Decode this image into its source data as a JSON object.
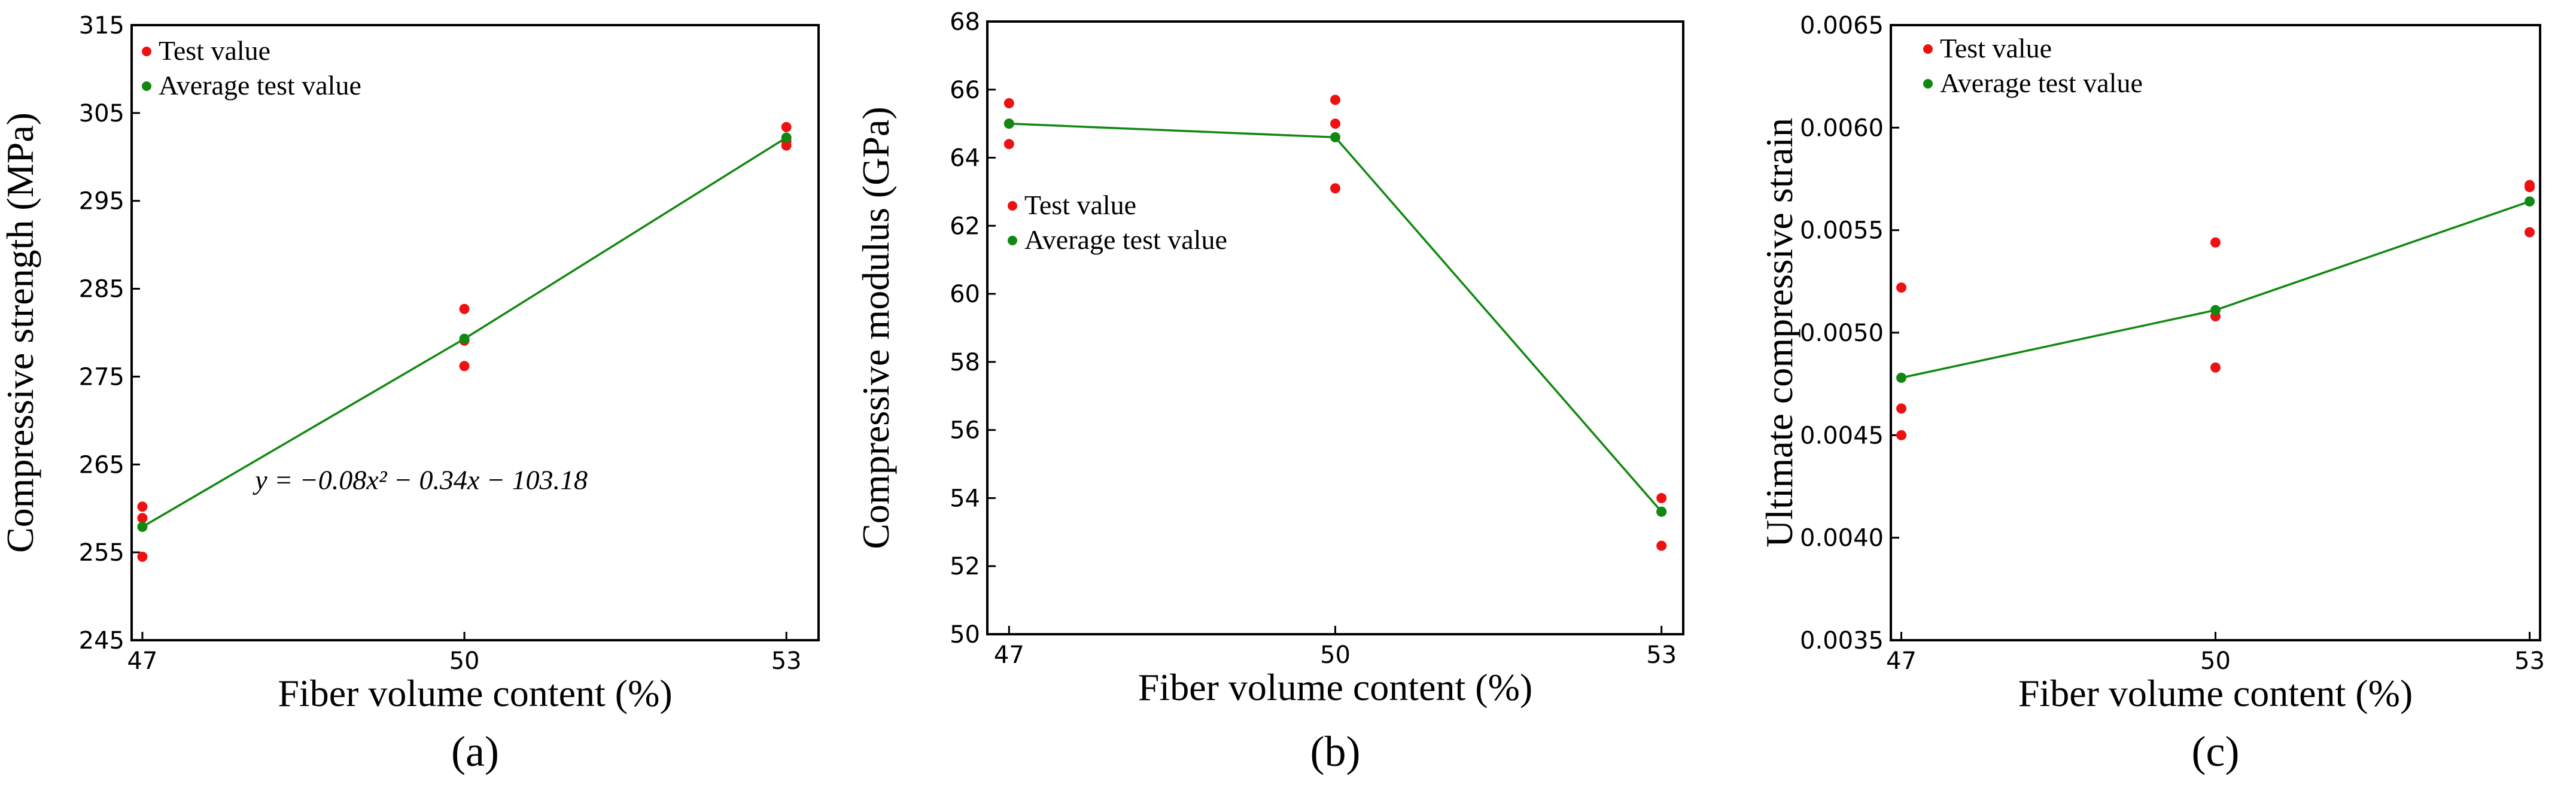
{
  "colors": {
    "test": "#ee1111",
    "average": "#118811",
    "frame": "#000000"
  },
  "chart_data": [
    {
      "type": "scatter",
      "panel_label": "(a)",
      "title": "",
      "xlabel": "Fiber volume content (%)",
      "ylabel": "Compressive strength (MPa)",
      "xlim": [
        46.9,
        53.3
      ],
      "ylim": [
        245,
        315
      ],
      "xticks": [
        47,
        50,
        53
      ],
      "yticks": [
        245,
        255,
        265,
        275,
        285,
        295,
        305,
        315
      ],
      "series": [
        {
          "name": "Test value",
          "kind": "points",
          "x": [
            47,
            47,
            47,
            50,
            50,
            50,
            53,
            53,
            53
          ],
          "y": [
            260.2,
            258.9,
            254.5,
            282.7,
            279.1,
            276.2,
            303.4,
            301.8,
            301.3
          ]
        },
        {
          "name": "Average test value",
          "kind": "line-with-points",
          "x": [
            47,
            50,
            53
          ],
          "y": [
            257.9,
            279.3,
            302.2
          ]
        }
      ],
      "legend": {
        "position": "top-left",
        "entries": [
          "Test value",
          "Average test value"
        ]
      },
      "annotation": {
        "text": "y = −0.08x² − 0.34x − 103.18",
        "at_x": 48.05,
        "at_y": 262.2
      }
    },
    {
      "type": "scatter",
      "panel_label": "(b)",
      "title": "",
      "xlabel": "Fiber volume content (%)",
      "ylabel": "Compressive modulus (GPa)",
      "xlim": [
        46.8,
        53.2
      ],
      "ylim": [
        50,
        68
      ],
      "xticks": [
        47,
        50,
        53
      ],
      "yticks": [
        50,
        52,
        54,
        56,
        58,
        60,
        62,
        64,
        66,
        68
      ],
      "series": [
        {
          "name": "Test value",
          "kind": "points",
          "x": [
            47,
            47,
            47,
            50,
            50,
            50,
            53,
            53,
            53
          ],
          "y": [
            65.6,
            65.0,
            64.4,
            65.7,
            65.0,
            63.1,
            54.0,
            53.6,
            52.6
          ]
        },
        {
          "name": "Average test value",
          "kind": "line-with-points",
          "x": [
            47,
            50,
            53
          ],
          "y": [
            65.0,
            64.6,
            53.6
          ]
        }
      ],
      "legend": {
        "position": "center-left",
        "entries": [
          "Test value",
          "Average test value"
        ]
      }
    },
    {
      "type": "scatter",
      "panel_label": "(c)",
      "title": "",
      "xlabel": "Fiber volume content (%)",
      "ylabel": "Ultimate compressive strain",
      "xlim": [
        46.9,
        53.1
      ],
      "ylim": [
        0.0035,
        0.0065
      ],
      "xticks": [
        47,
        50,
        53
      ],
      "yticks": [
        0.0035,
        0.004,
        0.0045,
        0.005,
        0.0055,
        0.006,
        0.0065
      ],
      "ytick_labels": [
        "0.0035",
        "0.0040",
        "0.0045",
        "0.0050",
        "0.0055",
        "0.0060",
        "0.0065"
      ],
      "series": [
        {
          "name": "Test value",
          "kind": "points",
          "x": [
            47,
            47,
            47,
            50,
            50,
            50,
            53,
            53,
            53
          ],
          "y": [
            0.00522,
            0.00463,
            0.0045,
            0.00544,
            0.00508,
            0.00483,
            0.00572,
            0.00571,
            0.00549
          ]
        },
        {
          "name": "Average test value",
          "kind": "line-with-points",
          "x": [
            47,
            50,
            53
          ],
          "y": [
            0.00478,
            0.00511,
            0.00564
          ]
        }
      ],
      "legend": {
        "position": "top-left",
        "entries": [
          "Test value",
          "Average test value"
        ]
      }
    }
  ]
}
